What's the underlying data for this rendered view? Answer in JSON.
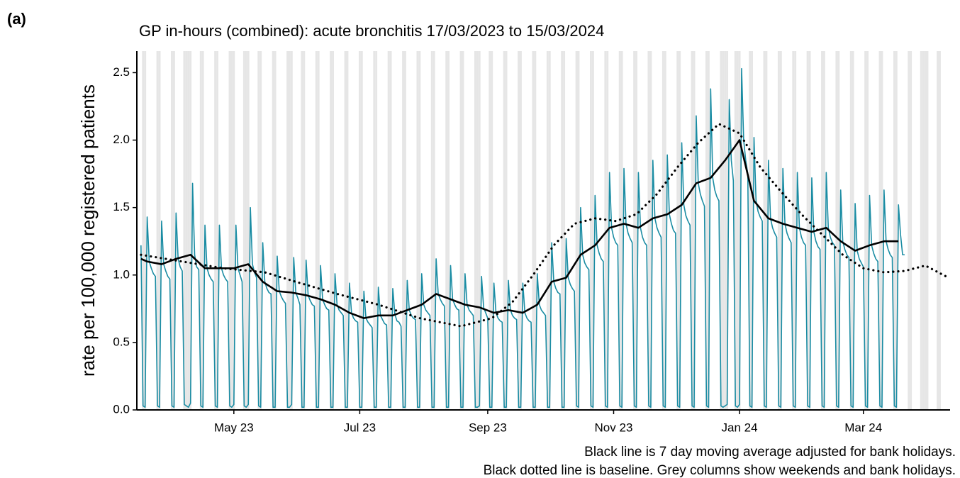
{
  "chart_data": {
    "type": "line",
    "panel_label": "(a)",
    "title": "GP in-hours (combined): acute bronchitis 17/03/2023 to 15/03/2024",
    "y_label": "rate per 100,000 registered patients",
    "notes": [
      "Black line is 7 day moving average adjusted for bank holidays.",
      "Black dotted line is baseline. Grey columns show weekends and bank holidays."
    ],
    "xlim": [
      -2,
      392
    ],
    "xticks": [
      {
        "value": 45,
        "label": "May 23"
      },
      {
        "value": 106,
        "label": "Jul 23"
      },
      {
        "value": 168,
        "label": "Sep 23"
      },
      {
        "value": 229,
        "label": "Nov 23"
      },
      {
        "value": 290,
        "label": "Jan 24"
      },
      {
        "value": 350,
        "label": "Mar 24"
      }
    ],
    "ylim": [
      0,
      2.66
    ],
    "yticks": [
      {
        "value": 0,
        "label": "0.0"
      },
      0.5,
      {
        "value": 1,
        "label": "1.0"
      },
      1.5,
      {
        "value": 2,
        "label": "2.0"
      },
      2.5
    ],
    "shade_color": "#e6e6e6",
    "shaded_days": [
      1,
      2,
      8,
      9,
      15,
      16,
      21,
      22,
      23,
      24,
      29,
      30,
      36,
      37,
      43,
      44,
      45,
      50,
      51,
      52,
      57,
      58,
      64,
      65,
      71,
      72,
      73,
      78,
      79,
      85,
      86,
      92,
      93,
      99,
      100,
      106,
      107,
      113,
      114,
      120,
      121,
      127,
      128,
      134,
      135,
      141,
      142,
      148,
      149,
      155,
      156,
      162,
      163,
      164,
      169,
      170,
      176,
      177,
      183,
      184,
      190,
      191,
      197,
      198,
      204,
      205,
      211,
      212,
      218,
      219,
      225,
      226,
      232,
      233,
      239,
      240,
      246,
      247,
      253,
      254,
      260,
      261,
      267,
      268,
      274,
      275,
      281,
      282,
      283,
      284,
      288,
      289,
      290,
      295,
      296,
      302,
      303,
      309,
      310,
      316,
      317,
      323,
      324,
      330,
      331,
      337,
      338,
      344,
      345,
      351,
      352,
      358,
      359,
      365,
      366,
      372,
      373,
      378,
      379,
      380,
      381,
      386,
      387
    ],
    "series": [
      {
        "color": "#1a8ca3",
        "style": "solid",
        "width": 1.6,
        "x": [
          0,
          1,
          2,
          3,
          4,
          5,
          6,
          7,
          8,
          9,
          10,
          11,
          12,
          13,
          14,
          15,
          16,
          17,
          18,
          19,
          20,
          21,
          22,
          23,
          24,
          25,
          26,
          27,
          28,
          29,
          30,
          31,
          32,
          33,
          34,
          35,
          36,
          37,
          38,
          39,
          40,
          41,
          42,
          43,
          44,
          45,
          46,
          47,
          48,
          49,
          50,
          51,
          52,
          53,
          54,
          55,
          56,
          57,
          58,
          59,
          60,
          61,
          62,
          63,
          64,
          65,
          66,
          67,
          68,
          69,
          70,
          71,
          72,
          73,
          74,
          75,
          76,
          77,
          78,
          79,
          80,
          81,
          82,
          83,
          84,
          85,
          86,
          87,
          88,
          89,
          90,
          91,
          92,
          93,
          94,
          95,
          96,
          97,
          98,
          99,
          100,
          101,
          102,
          103,
          104,
          105,
          106,
          107,
          108,
          109,
          110,
          111,
          112,
          113,
          114,
          115,
          116,
          117,
          118,
          119,
          120,
          121,
          122,
          123,
          124,
          125,
          126,
          127,
          128,
          129,
          130,
          131,
          132,
          133,
          134,
          135,
          136,
          137,
          138,
          139,
          140,
          141,
          142,
          143,
          144,
          145,
          146,
          147,
          148,
          149,
          150,
          151,
          152,
          153,
          154,
          155,
          156,
          157,
          158,
          159,
          160,
          161,
          162,
          163,
          164,
          165,
          166,
          167,
          168,
          169,
          170,
          171,
          172,
          173,
          174,
          175,
          176,
          177,
          178,
          179,
          180,
          181,
          182,
          183,
          184,
          185,
          186,
          187,
          188,
          189,
          190,
          191,
          192,
          193,
          194,
          195,
          196,
          197,
          198,
          199,
          200,
          201,
          202,
          203,
          204,
          205,
          206,
          207,
          208,
          209,
          210,
          211,
          212,
          213,
          214,
          215,
          216,
          217,
          218,
          219,
          220,
          221,
          222,
          223,
          224,
          225,
          226,
          227,
          228,
          229,
          230,
          231,
          232,
          233,
          234,
          235,
          236,
          237,
          238,
          239,
          240,
          241,
          242,
          243,
          244,
          245,
          246,
          247,
          248,
          249,
          250,
          251,
          252,
          253,
          254,
          255,
          256,
          257,
          258,
          259,
          260,
          261,
          262,
          263,
          264,
          265,
          266,
          267,
          268,
          269,
          270,
          271,
          272,
          273,
          274,
          275,
          276,
          277,
          278,
          279,
          280,
          281,
          282,
          283,
          284,
          285,
          286,
          287,
          288,
          289,
          290,
          291,
          292,
          293,
          294,
          295,
          296,
          297,
          298,
          299,
          300,
          301,
          302,
          303,
          304,
          305,
          306,
          307,
          308,
          309,
          310,
          311,
          312,
          313,
          314,
          315,
          316,
          317,
          318,
          319,
          320,
          321,
          322,
          323,
          324,
          325,
          326,
          327,
          328,
          329,
          330,
          331,
          332,
          333,
          334,
          335,
          336,
          337,
          338,
          339,
          340,
          341,
          342,
          343,
          344,
          345,
          346,
          347,
          348,
          349,
          350,
          351,
          352,
          353,
          354,
          355,
          356,
          357,
          358,
          359,
          360,
          361,
          362,
          363,
          364,
          365,
          366,
          367,
          368,
          369,
          370
        ],
        "values": [
          1.22,
          0.03,
          0.02,
          1.43,
          1.1,
          1.05,
          1.01,
          0.99,
          0.03,
          0.02,
          1.4,
          1.08,
          1.03,
          0.99,
          0.97,
          0.03,
          0.02,
          1.46,
          1.12,
          1.06,
          1.03,
          0.04,
          0.03,
          0.02,
          0.05,
          1.68,
          1.15,
          1.06,
          1.04,
          0.03,
          0.02,
          1.37,
          1.05,
          1.0,
          0.97,
          0.95,
          0.03,
          0.02,
          1.37,
          1.05,
          1.0,
          0.97,
          0.95,
          0.03,
          0.02,
          0.04,
          1.37,
          1.05,
          1.0,
          0.95,
          0.03,
          0.02,
          0.04,
          1.5,
          1.08,
          1.02,
          0.98,
          0.03,
          0.02,
          1.24,
          0.95,
          0.9,
          0.87,
          0.86,
          0.02,
          0.02,
          1.14,
          0.88,
          0.84,
          0.81,
          0.79,
          0.02,
          0.02,
          0.04,
          1.13,
          0.87,
          0.83,
          0.78,
          0.02,
          0.02,
          1.11,
          0.85,
          0.81,
          0.78,
          0.77,
          0.02,
          0.02,
          1.07,
          0.82,
          0.78,
          0.75,
          0.74,
          0.02,
          0.02,
          1.01,
          0.78,
          0.74,
          0.72,
          0.7,
          0.02,
          0.02,
          0.94,
          0.72,
          0.68,
          0.66,
          0.65,
          0.02,
          0.02,
          0.88,
          0.68,
          0.65,
          0.63,
          0.61,
          0.02,
          0.02,
          0.91,
          0.7,
          0.67,
          0.64,
          0.63,
          0.02,
          0.02,
          0.9,
          0.71,
          0.66,
          0.65,
          0.62,
          0.02,
          0.02,
          0.96,
          0.74,
          0.7,
          0.68,
          0.67,
          0.02,
          0.02,
          1.01,
          0.78,
          0.74,
          0.72,
          0.7,
          0.02,
          0.02,
          1.12,
          0.86,
          0.82,
          0.79,
          0.77,
          0.02,
          0.02,
          1.07,
          0.82,
          0.78,
          0.75,
          0.74,
          0.02,
          0.02,
          1.01,
          0.78,
          0.74,
          0.72,
          0.7,
          0.02,
          0.02,
          0.03,
          0.99,
          0.76,
          0.72,
          0.68,
          0.02,
          0.02,
          0.94,
          0.72,
          0.68,
          0.66,
          0.65,
          0.02,
          0.02,
          0.96,
          0.74,
          0.7,
          0.68,
          0.67,
          0.02,
          0.02,
          0.94,
          0.72,
          0.68,
          0.66,
          0.65,
          0.02,
          0.02,
          1.01,
          0.78,
          0.74,
          0.72,
          0.7,
          0.02,
          0.02,
          1.24,
          0.95,
          0.9,
          0.87,
          0.86,
          0.02,
          0.02,
          1.27,
          0.98,
          0.93,
          0.9,
          0.88,
          0.03,
          0.02,
          1.5,
          1.15,
          1.09,
          1.06,
          1.04,
          0.03,
          0.02,
          1.59,
          1.22,
          1.16,
          1.12,
          1.1,
          0.03,
          0.02,
          1.76,
          1.35,
          1.28,
          1.24,
          1.22,
          0.03,
          0.02,
          1.79,
          1.38,
          1.31,
          1.27,
          1.24,
          0.03,
          0.02,
          1.76,
          1.35,
          1.28,
          1.24,
          1.22,
          0.03,
          0.02,
          1.85,
          1.42,
          1.35,
          1.31,
          1.28,
          0.03,
          0.02,
          1.89,
          1.45,
          1.38,
          1.33,
          1.31,
          0.03,
          0.02,
          1.98,
          1.52,
          1.44,
          1.4,
          1.37,
          0.03,
          0.02,
          2.18,
          1.68,
          1.6,
          1.55,
          1.51,
          0.03,
          0.02,
          2.38,
          1.72,
          1.63,
          1.58,
          1.55,
          0.03,
          0.02,
          0.03,
          0.04,
          2.3,
          1.85,
          1.7,
          0.03,
          0.02,
          0.04,
          2.53,
          2.0,
          1.85,
          1.75,
          0.03,
          0.02,
          2.02,
          1.55,
          1.47,
          1.43,
          1.4,
          0.03,
          0.02,
          1.85,
          1.42,
          1.35,
          1.31,
          1.28,
          0.03,
          0.02,
          1.79,
          1.38,
          1.31,
          1.27,
          1.24,
          0.03,
          0.02,
          1.76,
          1.35,
          1.28,
          1.24,
          1.22,
          0.03,
          0.02,
          1.72,
          1.32,
          1.25,
          1.21,
          1.19,
          0.03,
          0.02,
          1.76,
          1.35,
          1.28,
          1.24,
          1.22,
          0.03,
          0.02,
          1.63,
          1.25,
          1.19,
          1.15,
          1.13,
          0.03,
          0.02,
          1.53,
          1.18,
          1.12,
          1.09,
          1.06,
          0.03,
          0.02,
          1.59,
          1.22,
          1.16,
          1.12,
          1.1,
          0.03,
          0.02,
          1.63,
          1.25,
          1.19,
          1.15,
          1.13,
          0.03,
          0.02,
          1.52,
          1.3,
          1.15,
          1.15
        ]
      },
      {
        "color": "#000000",
        "style": "solid",
        "width": 2.6,
        "x": [
          0,
          3,
          10,
          17,
          24,
          31,
          38,
          45,
          52,
          59,
          66,
          73,
          80,
          87,
          94,
          101,
          108,
          115,
          122,
          129,
          136,
          143,
          150,
          157,
          164,
          171,
          178,
          185,
          192,
          199,
          206,
          213,
          220,
          227,
          234,
          241,
          248,
          255,
          262,
          269,
          276,
          283,
          290,
          297,
          304,
          311,
          318,
          325,
          332,
          339,
          346,
          353,
          360,
          367
        ],
        "values": [
          1.12,
          1.1,
          1.08,
          1.12,
          1.15,
          1.05,
          1.05,
          1.05,
          1.08,
          0.95,
          0.88,
          0.87,
          0.85,
          0.82,
          0.78,
          0.72,
          0.68,
          0.7,
          0.7,
          0.74,
          0.78,
          0.86,
          0.82,
          0.78,
          0.76,
          0.72,
          0.74,
          0.72,
          0.78,
          0.95,
          0.98,
          1.15,
          1.22,
          1.35,
          1.38,
          1.35,
          1.42,
          1.45,
          1.52,
          1.68,
          1.72,
          1.85,
          2.0,
          1.55,
          1.42,
          1.38,
          1.35,
          1.32,
          1.35,
          1.25,
          1.18,
          1.22,
          1.25,
          1.25
        ]
      },
      {
        "color": "#000000",
        "style": "dotted",
        "width": 2.6,
        "x": [
          0,
          20,
          40,
          60,
          75,
          95,
          115,
          135,
          155,
          170,
          180,
          190,
          200,
          210,
          220,
          230,
          240,
          250,
          260,
          270,
          280,
          290,
          300,
          310,
          320,
          330,
          340,
          350,
          360,
          370,
          380,
          390
        ],
        "values": [
          1.15,
          1.1,
          1.05,
          1.02,
          0.95,
          0.86,
          0.78,
          0.68,
          0.62,
          0.68,
          0.8,
          1.0,
          1.22,
          1.38,
          1.42,
          1.4,
          1.45,
          1.6,
          1.8,
          1.98,
          2.12,
          2.05,
          1.8,
          1.62,
          1.45,
          1.3,
          1.15,
          1.05,
          1.02,
          1.03,
          1.07,
          0.99
        ]
      }
    ]
  }
}
